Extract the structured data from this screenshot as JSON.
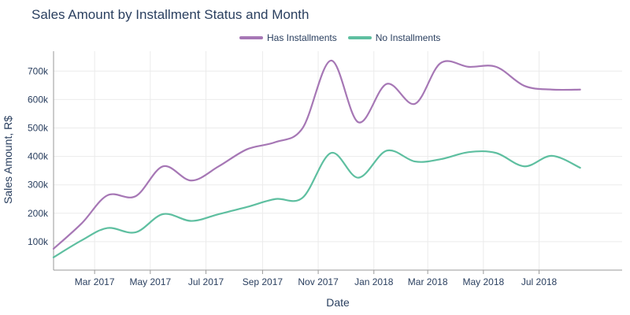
{
  "chart_data": {
    "type": "line",
    "title": "Sales Amount by Installment Status and Month",
    "xlabel": "Date",
    "ylabel": "Sales Amount, R$",
    "x_axis": {
      "start": "2017-01-15",
      "end": "2018-09-30",
      "ticks": [
        {
          "label": "Mar 2017",
          "date": "2017-03-01"
        },
        {
          "label": "May 2017",
          "date": "2017-05-01"
        },
        {
          "label": "Jul 2017",
          "date": "2017-07-01"
        },
        {
          "label": "Sep 2017",
          "date": "2017-09-01"
        },
        {
          "label": "Nov 2017",
          "date": "2017-11-01"
        },
        {
          "label": "Jan 2018",
          "date": "2018-01-01"
        },
        {
          "label": "Mar 2018",
          "date": "2018-03-01"
        },
        {
          "label": "May 2018",
          "date": "2018-05-01"
        },
        {
          "label": "Jul 2018",
          "date": "2018-07-01"
        }
      ]
    },
    "y_axis": {
      "range": [
        0,
        770000
      ],
      "ticks": [
        {
          "label": "100k",
          "value": 100000
        },
        {
          "label": "200k",
          "value": 200000
        },
        {
          "label": "300k",
          "value": 300000
        },
        {
          "label": "400k",
          "value": 400000
        },
        {
          "label": "500k",
          "value": 500000
        },
        {
          "label": "600k",
          "value": 600000
        },
        {
          "label": "700k",
          "value": 700000
        }
      ]
    },
    "grid": true,
    "legend_position": "top-center",
    "series": [
      {
        "name": "Has Installments",
        "color": "#a677b5",
        "points": [
          [
            "2017-01-15",
            75000
          ],
          [
            "2017-02-15",
            165000
          ],
          [
            "2017-03-15",
            263000
          ],
          [
            "2017-04-15",
            260000
          ],
          [
            "2017-05-15",
            365000
          ],
          [
            "2017-06-15",
            315000
          ],
          [
            "2017-07-15",
            365000
          ],
          [
            "2017-08-15",
            425000
          ],
          [
            "2017-09-15",
            450000
          ],
          [
            "2017-10-15",
            500000
          ],
          [
            "2017-11-15",
            737000
          ],
          [
            "2017-12-15",
            520000
          ],
          [
            "2018-01-15",
            655000
          ],
          [
            "2018-02-15",
            585000
          ],
          [
            "2018-03-15",
            728000
          ],
          [
            "2018-04-15",
            715000
          ],
          [
            "2018-05-15",
            715000
          ],
          [
            "2018-06-15",
            648000
          ],
          [
            "2018-07-15",
            635000
          ],
          [
            "2018-08-15",
            635000
          ]
        ]
      },
      {
        "name": "No Installments",
        "color": "#5ebfa0",
        "points": [
          [
            "2017-01-15",
            45000
          ],
          [
            "2017-02-15",
            105000
          ],
          [
            "2017-03-15",
            148000
          ],
          [
            "2017-04-15",
            133000
          ],
          [
            "2017-05-15",
            197000
          ],
          [
            "2017-06-15",
            173000
          ],
          [
            "2017-07-15",
            197000
          ],
          [
            "2017-08-15",
            222000
          ],
          [
            "2017-09-15",
            250000
          ],
          [
            "2017-10-15",
            255000
          ],
          [
            "2017-11-15",
            412000
          ],
          [
            "2017-12-15",
            325000
          ],
          [
            "2018-01-15",
            420000
          ],
          [
            "2018-02-15",
            382000
          ],
          [
            "2018-03-15",
            390000
          ],
          [
            "2018-04-15",
            415000
          ],
          [
            "2018-05-15",
            412000
          ],
          [
            "2018-06-15",
            365000
          ],
          [
            "2018-07-15",
            402000
          ],
          [
            "2018-08-15",
            360000
          ]
        ]
      }
    ]
  }
}
